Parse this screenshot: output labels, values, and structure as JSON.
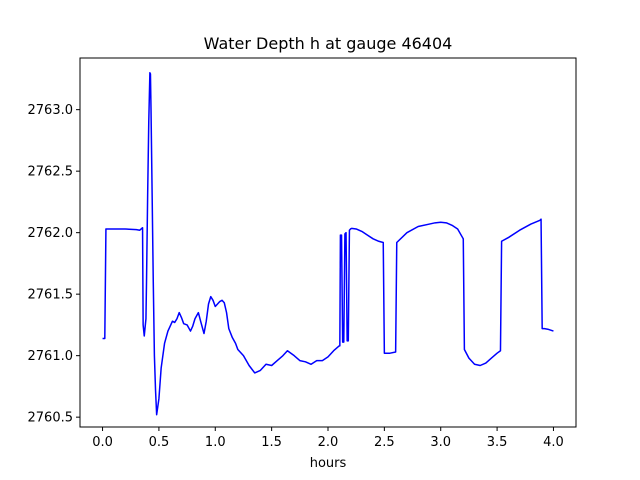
{
  "chart_data": {
    "type": "line",
    "title": "Water Depth h at gauge 46404",
    "xlabel": "hours",
    "ylabel": "",
    "xlim": [
      -0.2,
      4.2
    ],
    "ylim": [
      2760.42,
      2763.42
    ],
    "xticks": [
      0.0,
      0.5,
      1.0,
      1.5,
      2.0,
      2.5,
      3.0,
      3.5,
      4.0
    ],
    "xtick_labels": [
      "0.0",
      "0.5",
      "1.0",
      "1.5",
      "2.0",
      "2.5",
      "3.0",
      "3.5",
      "4.0"
    ],
    "yticks": [
      2760.5,
      2761.0,
      2761.5,
      2762.0,
      2762.5,
      2763.0
    ],
    "ytick_labels": [
      "2760.5",
      "2761.0",
      "2761.5",
      "2762.0",
      "2762.5",
      "2763.0"
    ],
    "grid": false,
    "series": [
      {
        "color": "#0000ff",
        "x": [
          0.0,
          0.02,
          0.03,
          0.04,
          0.1,
          0.2,
          0.3,
          0.33,
          0.355,
          0.36,
          0.37,
          0.385,
          0.39,
          0.4,
          0.41,
          0.42,
          0.425,
          0.43,
          0.44,
          0.45,
          0.46,
          0.47,
          0.48,
          0.5,
          0.52,
          0.55,
          0.58,
          0.6,
          0.62,
          0.64,
          0.66,
          0.68,
          0.7,
          0.72,
          0.75,
          0.78,
          0.8,
          0.82,
          0.85,
          0.87,
          0.9,
          0.92,
          0.94,
          0.96,
          0.98,
          1.0,
          1.02,
          1.04,
          1.06,
          1.08,
          1.1,
          1.12,
          1.15,
          1.18,
          1.2,
          1.25,
          1.3,
          1.35,
          1.4,
          1.45,
          1.5,
          1.55,
          1.6,
          1.64,
          1.7,
          1.75,
          1.8,
          1.85,
          1.9,
          1.95,
          2.0,
          2.05,
          2.1,
          2.105,
          2.11,
          2.12,
          2.13,
          2.14,
          2.15,
          2.16,
          2.17,
          2.18,
          2.19,
          2.2,
          2.21,
          2.25,
          2.3,
          2.35,
          2.4,
          2.45,
          2.49,
          2.5,
          2.55,
          2.6,
          2.61,
          2.7,
          2.8,
          2.9,
          2.95,
          3.0,
          3.05,
          3.1,
          3.15,
          3.2,
          3.21,
          3.25,
          3.3,
          3.35,
          3.4,
          3.45,
          3.5,
          3.53,
          3.54,
          3.6,
          3.7,
          3.8,
          3.88,
          3.89,
          3.9,
          3.92,
          3.95,
          4.0
        ],
        "y": [
          2761.14,
          2761.14,
          2762.03,
          2762.03,
          2762.03,
          2762.03,
          2762.025,
          2762.02,
          2762.04,
          2761.25,
          2761.16,
          2761.3,
          2761.6,
          2762.3,
          2762.9,
          2763.3,
          2763.29,
          2763.0,
          2762.3,
          2761.6,
          2761.0,
          2760.72,
          2760.52,
          2760.65,
          2760.9,
          2761.1,
          2761.2,
          2761.24,
          2761.28,
          2761.27,
          2761.3,
          2761.35,
          2761.31,
          2761.26,
          2761.25,
          2761.2,
          2761.24,
          2761.3,
          2761.35,
          2761.28,
          2761.18,
          2761.28,
          2761.42,
          2761.48,
          2761.45,
          2761.4,
          2761.42,
          2761.44,
          2761.45,
          2761.43,
          2761.35,
          2761.22,
          2761.15,
          2761.1,
          2761.05,
          2761.0,
          2760.92,
          2760.86,
          2760.88,
          2760.93,
          2760.92,
          2760.96,
          2761.0,
          2761.04,
          2761.0,
          2760.96,
          2760.95,
          2760.93,
          2760.96,
          2760.96,
          2760.99,
          2761.04,
          2761.08,
          2761.08,
          2761.98,
          2761.98,
          2761.11,
          2761.11,
          2761.99,
          2762.0,
          2761.12,
          2761.12,
          2762.02,
          2762.03,
          2762.035,
          2762.03,
          2762.01,
          2761.98,
          2761.95,
          2761.93,
          2761.92,
          2761.02,
          2761.02,
          2761.03,
          2761.92,
          2762.0,
          2762.05,
          2762.07,
          2762.08,
          2762.085,
          2762.08,
          2762.06,
          2762.03,
          2761.95,
          2761.05,
          2760.98,
          2760.93,
          2760.92,
          2760.94,
          2760.98,
          2761.02,
          2761.04,
          2761.93,
          2761.96,
          2762.02,
          2762.07,
          2762.1,
          2762.11,
          2761.22,
          2761.22,
          2761.215,
          2761.2
        ]
      }
    ]
  }
}
